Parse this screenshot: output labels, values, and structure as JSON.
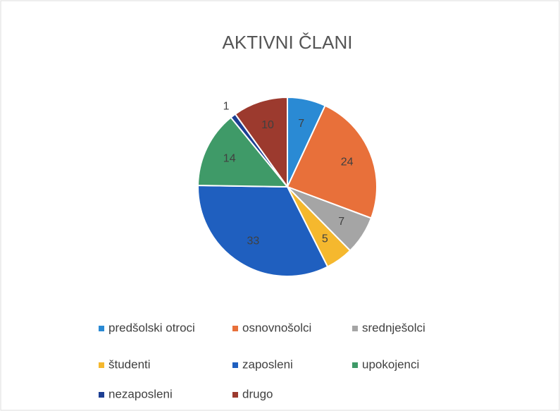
{
  "chart_data": {
    "type": "pie",
    "title": "AKTIVNI ČLANI",
    "categories": [
      "predšolski otroci",
      "osnovnošolci",
      "srednješolci",
      "študenti",
      "zaposleni",
      "upokojenci",
      "nezaposleni",
      "drugo"
    ],
    "values": [
      7,
      24,
      7,
      5,
      33,
      14,
      1,
      10
    ],
    "colors": [
      "#2a8ad4",
      "#e8703a",
      "#a5a5a5",
      "#f5b82e",
      "#1f5fbf",
      "#3f9a68",
      "#1d3f93",
      "#9c3a2e"
    ],
    "legend": "bottom"
  }
}
